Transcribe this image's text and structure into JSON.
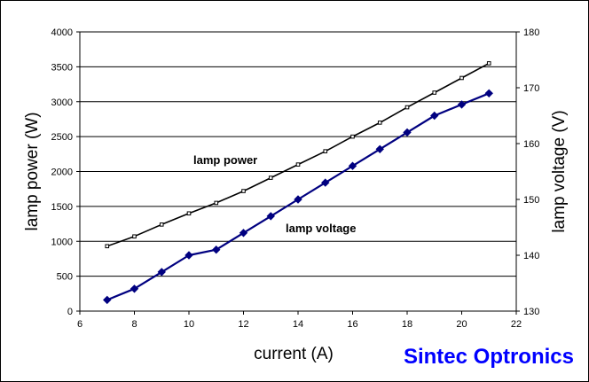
{
  "chart_data": {
    "type": "line",
    "title": "",
    "xlabel": "current (A)",
    "ylabel_left": "lamp power (W)",
    "ylabel_right": "lamp voltage (V)",
    "x_ticks": [
      6,
      8,
      10,
      12,
      14,
      16,
      18,
      20,
      22
    ],
    "y_left_ticks": [
      0,
      500,
      1000,
      1500,
      2000,
      2500,
      3000,
      3500,
      4000
    ],
    "y_right_ticks": [
      130,
      140,
      150,
      160,
      170,
      180
    ],
    "xlim": [
      6,
      22
    ],
    "ylim_left": [
      0,
      4000
    ],
    "ylim_right": [
      130,
      180
    ],
    "grid": "horizontal",
    "series": [
      {
        "name": "lamp power",
        "axis": "left",
        "color": "#000000",
        "marker": "square",
        "x": [
          7,
          8,
          9,
          10,
          11,
          12,
          13,
          14,
          15,
          16,
          17,
          18,
          19,
          20,
          21
        ],
        "y": [
          930,
          1070,
          1240,
          1400,
          1550,
          1720,
          1910,
          2100,
          2290,
          2500,
          2700,
          2920,
          3130,
          3340,
          3550
        ]
      },
      {
        "name": "lamp voltage",
        "axis": "right",
        "color": "#000080",
        "marker": "diamond",
        "x": [
          7,
          8,
          9,
          10,
          11,
          12,
          13,
          14,
          15,
          16,
          17,
          18,
          19,
          20,
          21
        ],
        "y": [
          132,
          134,
          137,
          140,
          141,
          144,
          147,
          150,
          153,
          156,
          159,
          162,
          165,
          167,
          169
        ]
      }
    ],
    "annotations": [
      {
        "text": "lamp power",
        "series": "lamp power"
      },
      {
        "text": "lamp voltage",
        "series": "lamp voltage"
      }
    ]
  },
  "brand": {
    "text": "Sintec Optronics",
    "color": "#0000ff"
  }
}
